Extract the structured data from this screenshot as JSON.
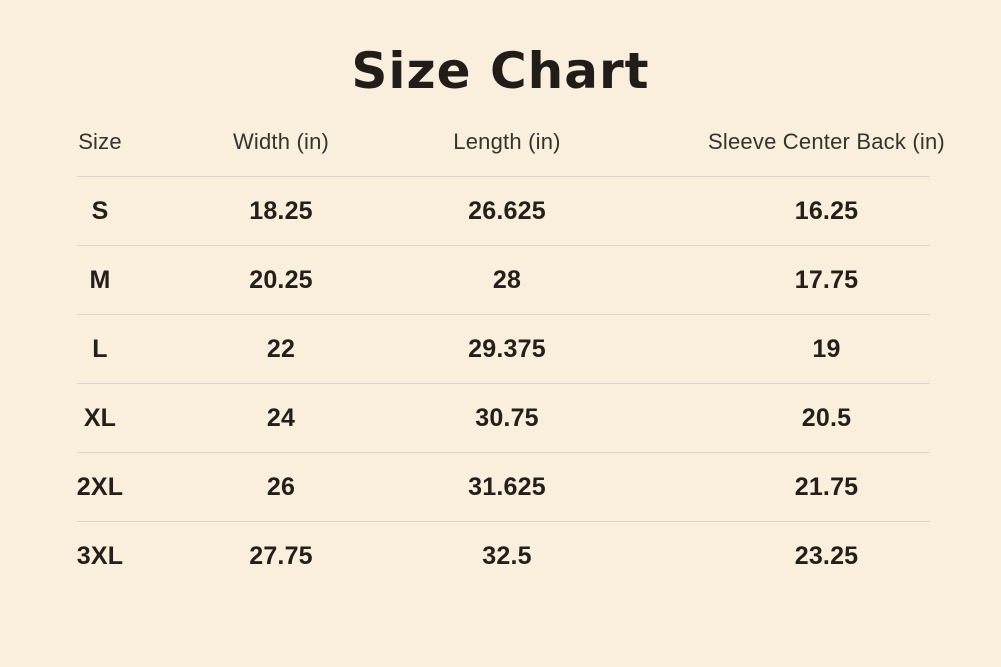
{
  "page": {
    "title": "Size Chart",
    "background_color": "#faeedd",
    "divider_color": "#dcd5c7",
    "title_color": "#211d18",
    "header_text_color": "#37332c",
    "data_text_color": "#242019"
  },
  "table": {
    "columns": [
      "Size",
      "Width (in)",
      "Length (in)",
      "Sleeve Center Back (in)"
    ],
    "rows": [
      [
        "S",
        "18.25",
        "26.625",
        "16.25"
      ],
      [
        "M",
        "20.25",
        "28",
        "17.75"
      ],
      [
        "L",
        "22",
        "29.375",
        "19"
      ],
      [
        "XL",
        "24",
        "30.75",
        "20.5"
      ],
      [
        "2XL",
        "26",
        "31.625",
        "21.75"
      ],
      [
        "3XL",
        "27.75",
        "32.5",
        "23.25"
      ]
    ]
  },
  "chart_data": {
    "type": "table",
    "title": "Size Chart",
    "columns": [
      "Size",
      "Width (in)",
      "Length (in)",
      "Sleeve Center Back (in)"
    ],
    "rows": [
      {
        "size": "S",
        "width_in": 18.25,
        "length_in": 26.625,
        "sleeve_center_back_in": 16.25
      },
      {
        "size": "M",
        "width_in": 20.25,
        "length_in": 28,
        "sleeve_center_back_in": 17.75
      },
      {
        "size": "L",
        "width_in": 22,
        "length_in": 29.375,
        "sleeve_center_back_in": 19
      },
      {
        "size": "XL",
        "width_in": 24,
        "length_in": 30.75,
        "sleeve_center_back_in": 20.5
      },
      {
        "size": "2XL",
        "width_in": 26,
        "length_in": 31.625,
        "sleeve_center_back_in": 21.75
      },
      {
        "size": "3XL",
        "width_in": 27.75,
        "length_in": 32.5,
        "sleeve_center_back_in": 23.25
      }
    ]
  }
}
